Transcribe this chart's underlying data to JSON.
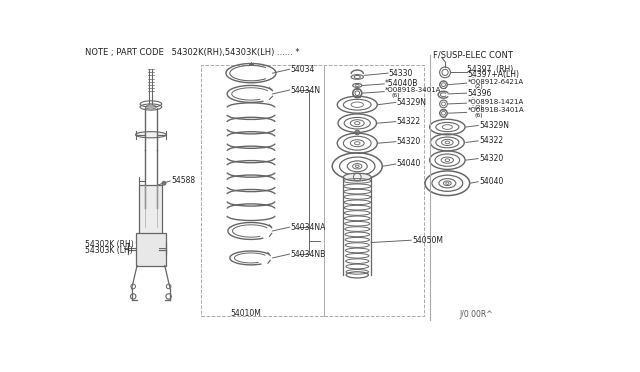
{
  "background_color": "#ffffff",
  "line_color": "#666666",
  "text_color": "#222222",
  "title_note": "NOTE ; PART CODE   54302K(RH),54303K(LH) ...... *",
  "diagram_title": "F/SUSP-ELEC CONT",
  "diagram_id": "J/0 00R^",
  "fig_width": 6.4,
  "fig_height": 3.72,
  "dpi": 100
}
